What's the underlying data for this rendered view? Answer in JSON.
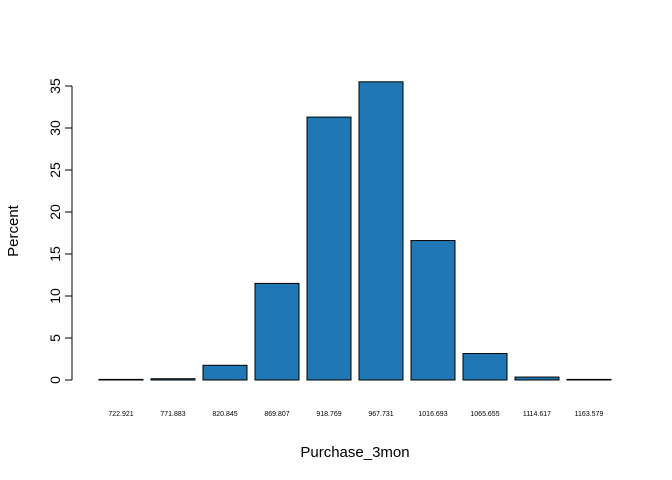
{
  "chart_data": {
    "type": "bar",
    "title": "",
    "xlabel": "Purchase_3mon",
    "ylabel": "Percent",
    "categories": [
      "722.921",
      "771.883",
      "820.845",
      "869.807",
      "918.769",
      "967.731",
      "1016.693",
      "1065.655",
      "1114.617",
      "1163.579"
    ],
    "values": [
      0.05,
      0.15,
      1.75,
      11.5,
      31.3,
      35.5,
      16.6,
      3.15,
      0.35,
      0.05
    ],
    "yticks": [
      "0",
      "5",
      "10",
      "15",
      "20",
      "25",
      "30",
      "35"
    ],
    "ylim": [
      0,
      35.5
    ],
    "bar_color": "#1f78b4",
    "border_color": "#000000",
    "grid": false
  }
}
